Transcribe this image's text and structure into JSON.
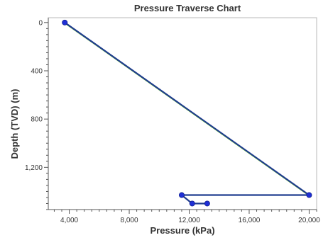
{
  "chart_data": {
    "type": "line",
    "title": "Pressure Traverse Chart",
    "xlabel": "Pressure (kPa)",
    "ylabel": "Depth (TVD) (m)",
    "xlim": [
      2600,
      20500
    ],
    "ylim": [
      1550,
      -40
    ],
    "x_ticks": [
      {
        "value": 4000,
        "label": "4,000"
      },
      {
        "value": 8000,
        "label": "8,000"
      },
      {
        "value": 12000,
        "label": "12,000"
      },
      {
        "value": 16000,
        "label": "16,000"
      },
      {
        "value": 20000,
        "label": "20,000"
      }
    ],
    "y_ticks": [
      {
        "value": 0,
        "label": "0"
      },
      {
        "value": 400,
        "label": "400"
      },
      {
        "value": 800,
        "label": "800"
      },
      {
        "value": 1200,
        "label": "1,200"
      }
    ],
    "grid": false,
    "series": [
      {
        "color": "#7cd42a",
        "markers": false,
        "points": [
          [
            3700,
            0
          ],
          [
            20000,
            1430
          ]
        ]
      },
      {
        "color": "#1f3c8f",
        "markers": true,
        "points": [
          [
            3700,
            0
          ],
          [
            20000,
            1430
          ],
          [
            11500,
            1430
          ],
          [
            12200,
            1500
          ],
          [
            13200,
            1500
          ]
        ]
      }
    ]
  }
}
